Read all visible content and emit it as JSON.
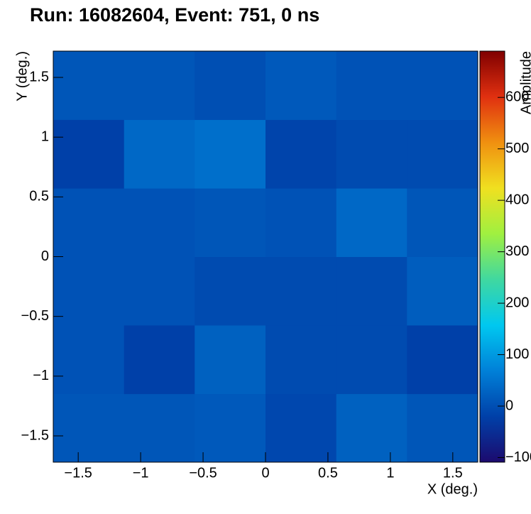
{
  "chart_data": {
    "type": "heatmap",
    "title": "Run: 16082604, Event: 751, 0 ns",
    "x_label": "X (deg.)",
    "y_label": "Y (deg.)",
    "z_label": "Amplitude",
    "x_edges": [
      -1.7,
      -1.133,
      -0.567,
      0,
      0.567,
      1.133,
      1.7
    ],
    "y_edges": [
      -1.72,
      -1.147,
      -0.573,
      0,
      0.573,
      1.147,
      1.72
    ],
    "z": [
      [
        10,
        10,
        15,
        -10,
        25,
        10
      ],
      [
        5,
        -20,
        25,
        -5,
        -5,
        -20
      ],
      [
        5,
        5,
        -5,
        -5,
        -5,
        20
      ],
      [
        5,
        5,
        10,
        5,
        35,
        10
      ],
      [
        -20,
        35,
        45,
        -15,
        -5,
        -5
      ],
      [
        10,
        10,
        0,
        15,
        5,
        5
      ]
    ],
    "xlim": [
      -1.7,
      1.7
    ],
    "ylim": [
      -1.72,
      1.72
    ],
    "zlim": [
      -109,
      690
    ],
    "xticks": [
      {
        "value": -1.5,
        "label": "−1.5"
      },
      {
        "value": -1,
        "label": "−1"
      },
      {
        "value": -0.5,
        "label": "−0.5"
      },
      0,
      0.5,
      1,
      1.5
    ],
    "yticks": [
      {
        "value": -1.5,
        "label": "−1.5"
      },
      {
        "value": -1,
        "label": "−1"
      },
      {
        "value": -0.5,
        "label": "−0.5"
      },
      0,
      0.5,
      1,
      1.5
    ],
    "zticks": [
      {
        "value": -100,
        "label": "−100"
      },
      0,
      100,
      200,
      300,
      400,
      500,
      600
    ],
    "colorscale": [
      "#1c0a6e",
      "#0040a8",
      "#0080d8",
      "#00c8f0",
      "#40d8a0",
      "#a0f040",
      "#f0e020",
      "#f09010",
      "#e03010",
      "#800000"
    ]
  }
}
